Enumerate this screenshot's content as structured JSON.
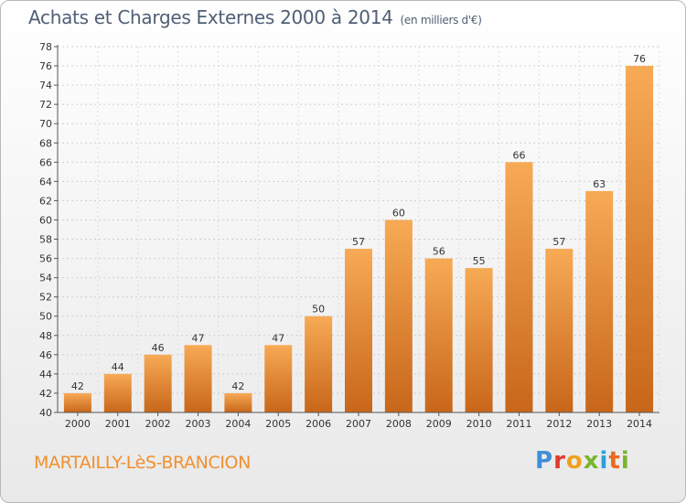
{
  "header": {
    "title": "Achats et Charges Externes 2000 à 2014",
    "unit": "(en milliers d'€)"
  },
  "footer": {
    "commune": "MARTAILLY-LèS-BRANCION",
    "logo": "Proxiti"
  },
  "colors": {
    "bar_top": "#f7aa55",
    "bar_bottom": "#c8661a",
    "title": "#4f5f74",
    "commune": "#f09030"
  },
  "chart_data": {
    "type": "bar",
    "title": "Achats et Charges Externes 2000 à 2014",
    "subtitle": "(en milliers d'€)",
    "xlabel": "",
    "ylabel": "",
    "categories": [
      "2000",
      "2001",
      "2002",
      "2003",
      "2004",
      "2005",
      "2006",
      "2007",
      "2008",
      "2009",
      "2010",
      "2011",
      "2012",
      "2013",
      "2014"
    ],
    "values": [
      42,
      44,
      46,
      47,
      42,
      47,
      50,
      57,
      60,
      56,
      55,
      66,
      57,
      63,
      76
    ],
    "ylim": [
      40,
      78
    ],
    "yticks": [
      40,
      42,
      44,
      46,
      48,
      50,
      52,
      54,
      56,
      58,
      60,
      62,
      64,
      66,
      68,
      70,
      72,
      74,
      76,
      78
    ],
    "grid": true,
    "legend": "none",
    "data_labels": true
  }
}
